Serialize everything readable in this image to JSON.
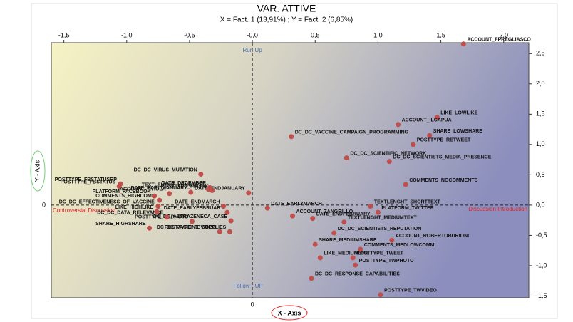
{
  "chart_data": {
    "type": "scatter",
    "title": "VAR. ATTIVE",
    "subtitle": "X = Fact. 1 (13,91%) ; Y = Fact. 2 (6,85%)",
    "x_label": "X - Axis",
    "y_label": "Y - Axis",
    "origin_label": "0",
    "annotations": [
      "Run Up",
      "Follow - UP",
      "Controversial Discussion",
      "Discussion Introduction"
    ],
    "color": "#c0504d",
    "xlim": [
      -1.6,
      2.2
    ],
    "ylim": [
      -1.53,
      2.68
    ],
    "xticks": [
      {
        "value": -1.5,
        "label": "-1,5"
      },
      {
        "value": -1.0,
        "label": "-1,0"
      },
      {
        "value": -0.5,
        "label": "-0,5"
      },
      {
        "value": 0,
        "label": "-0,0"
      },
      {
        "value": 0.5,
        "label": "0,5"
      },
      {
        "value": 1.0,
        "label": "1,0"
      },
      {
        "value": 1.5,
        "label": "1,5"
      },
      {
        "value": 2.0,
        "label": "2,0"
      }
    ],
    "yticks": [
      {
        "value": 2.5,
        "label": "2,5"
      },
      {
        "value": 2.0,
        "label": "2,0"
      },
      {
        "value": 1.5,
        "label": "1,5"
      },
      {
        "value": 1.0,
        "label": "1,0"
      },
      {
        "value": 0.5,
        "label": "0,5"
      },
      {
        "value": 0,
        "label": "0,0"
      },
      {
        "value": -0.5,
        "label": "-0,5"
      },
      {
        "value": -1.0,
        "label": "-1,0"
      },
      {
        "value": -1.5,
        "label": "-1,5"
      }
    ],
    "labels": [
      "ACCOUNT_FPREGLIASCO",
      "LIKE_LOWLIKE",
      "ACCOUNT_ILCAPUA",
      "SHARE_LOWSHARE",
      "POSTTYPE_RETWEET",
      "DC_DC_VACCINE_CAMPAIGN_PROGRAMMING",
      "DC_DC_SCIENTIFIC_NETWORK",
      "DC_DC_SCIENTISTS_MEDIA_PRESENCE",
      "COMMENTS_NOCOMMENTS",
      "TEXTLENGHT_SHORTTEXT",
      "PLATFORM_TWITTER",
      "TEXTLENGHT_MEDIUMTEXT",
      "DC_DC_SCIENTISTS_REPUTATION",
      "ACCOUNT_ROBERTOBURIONI",
      "SHARE_MEDIUMSHARE",
      "COMMENTS_MEDLOWCOMM",
      "LIKE_MEDIUMLIKE",
      "POSTTYPE_TWEET",
      "POSTTYPE_TWPHOTO",
      "DC_DC_RESPONSE_CAPABILITIES",
      "POSTTYPE_TWVIDEO",
      "ACCOUNT_ZANGRILLO",
      "DATE_ENDFEBRUARY",
      "DATE_EARLYMARCH",
      "DATE_ENDJANUARY",
      "DATE_EARLYFEBRUARY",
      "DC_DC_ASTRAZENECA_CASE",
      "DC_DC_VACCINE_SUPPLIES",
      "DATE_ENDMARCH",
      "POSTTYPE_FBVIDEO",
      "POSTTYPE_FBPHOTO",
      "DC_DC_DATA_RELEVANCE",
      "SHARE_HIGHSHARE",
      "LIKE_HIGHLIKE",
      "DC_DC_EFFECTIVENESS_OF_VACCINE",
      "COMMENTS_HIGHCOMM",
      "ACCOUNT_AVIOLA",
      "PLATFORM_FACEBOOK",
      "DATE_EARLYJANUARY",
      "POSTTYPE_FBLINK",
      "DATE_DECEMBER",
      "TEXTLENGHT_LONGTEXT",
      "DC_DC_VIRUS_MUTATION",
      "POSTTYPE_FBSTATUSRP",
      "POSTTYPE_FBSTATUS"
    ],
    "x": [
      1.68,
      1.47,
      1.16,
      1.41,
      1.28,
      0.31,
      0.75,
      1.09,
      1.22,
      0.94,
      1.0,
      0.73,
      0.65,
      1.11,
      0.5,
      0.86,
      0.54,
      0.8,
      0.82,
      0.47,
      1.02,
      0.32,
      0.48,
      0.12,
      -0.03,
      -0.2,
      -0.17,
      -0.18,
      -0.23,
      -0.26,
      -0.48,
      -0.68,
      -0.82,
      -0.76,
      -0.75,
      -0.74,
      -0.66,
      -0.78,
      -0.49,
      -0.32,
      -0.34,
      -0.35,
      -0.41,
      -1.05,
      -1.06
    ],
    "values": [
      2.66,
      1.45,
      1.33,
      1.15,
      1.0,
      1.13,
      0.78,
      0.72,
      0.34,
      -0.02,
      -0.12,
      -0.28,
      -0.46,
      -0.58,
      -0.65,
      -0.73,
      -0.87,
      -0.87,
      -0.99,
      -1.21,
      -1.48,
      -0.18,
      -0.22,
      -0.05,
      0.2,
      -0.12,
      -0.26,
      -0.44,
      -0.02,
      -0.44,
      -0.27,
      -0.2,
      -0.38,
      -0.11,
      -0.02,
      0.08,
      0.19,
      0.15,
      0.21,
      0.24,
      0.29,
      0.26,
      0.51,
      0.35,
      0.31
    ]
  }
}
